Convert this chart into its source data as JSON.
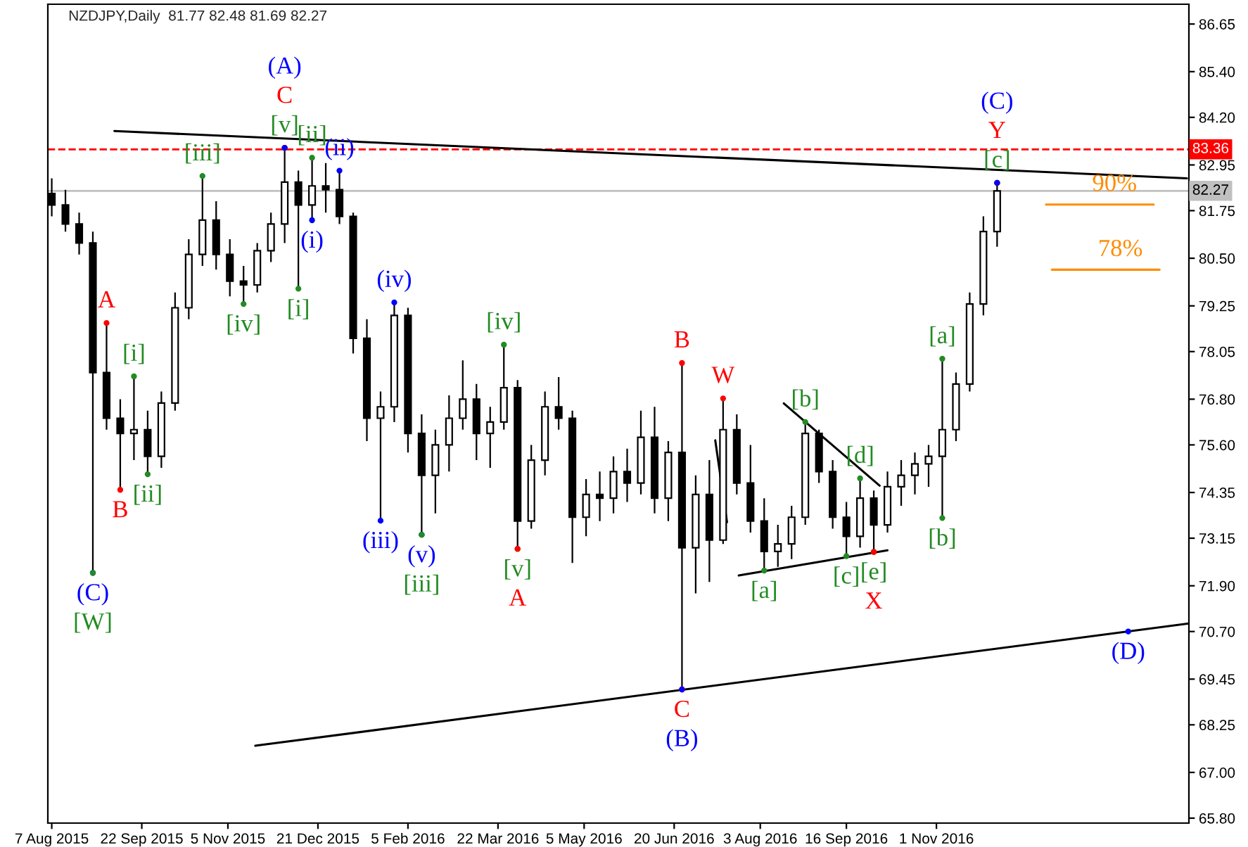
{
  "chart_data": {
    "type": "candlestick",
    "title": "NZDJPY,Daily  81.77 82.48 81.69 82.27",
    "x": [
      "2015-08-07",
      "2015-08-14",
      "2015-08-21",
      "2015-08-28",
      "2015-09-04",
      "2015-09-11",
      "2015-09-18",
      "2015-09-25",
      "2015-10-02",
      "2015-10-09",
      "2015-10-16",
      "2015-10-23",
      "2015-10-30",
      "2015-11-06",
      "2015-11-13",
      "2015-11-20",
      "2015-11-27",
      "2015-12-04",
      "2015-12-11",
      "2015-12-18",
      "2015-12-25",
      "2016-01-01",
      "2016-01-08",
      "2016-01-15",
      "2016-01-22",
      "2016-01-29",
      "2016-02-05",
      "2016-02-12",
      "2016-02-19",
      "2016-02-26",
      "2016-03-04",
      "2016-03-11",
      "2016-03-18",
      "2016-03-25",
      "2016-04-01",
      "2016-04-08",
      "2016-04-15",
      "2016-04-22",
      "2016-04-29",
      "2016-05-06",
      "2016-05-13",
      "2016-05-20",
      "2016-05-27",
      "2016-06-03",
      "2016-06-10",
      "2016-06-17",
      "2016-06-24",
      "2016-07-01",
      "2016-07-08",
      "2016-07-15",
      "2016-07-22",
      "2016-07-29",
      "2016-08-05",
      "2016-08-12",
      "2016-08-19",
      "2016-08-26",
      "2016-09-02",
      "2016-09-09",
      "2016-09-16",
      "2016-09-23",
      "2016-09-30",
      "2016-10-07",
      "2016-10-14",
      "2016-10-21",
      "2016-10-28",
      "2016-11-04",
      "2016-11-11",
      "2016-11-18",
      "2016-11-25",
      "2016-12-02"
    ],
    "ohlc": [
      [
        82.2,
        82.6,
        81.6,
        81.9
      ],
      [
        81.9,
        82.3,
        81.2,
        81.4
      ],
      [
        81.4,
        81.7,
        80.6,
        80.9
      ],
      [
        80.9,
        81.2,
        72.24,
        77.5
      ],
      [
        77.5,
        78.8,
        76.0,
        76.3
      ],
      [
        76.3,
        76.8,
        74.42,
        75.9
      ],
      [
        75.9,
        77.4,
        75.2,
        76.0
      ],
      [
        76.0,
        76.5,
        74.83,
        75.3
      ],
      [
        75.3,
        77.0,
        75.0,
        76.7
      ],
      [
        76.7,
        79.6,
        76.5,
        79.2
      ],
      [
        79.2,
        81.0,
        78.9,
        80.6
      ],
      [
        80.6,
        82.66,
        80.3,
        81.5
      ],
      [
        81.5,
        82.0,
        80.2,
        80.6
      ],
      [
        80.6,
        81.0,
        79.5,
        79.9
      ],
      [
        79.9,
        80.3,
        79.3,
        79.8
      ],
      [
        79.8,
        80.9,
        79.6,
        80.7
      ],
      [
        80.7,
        81.7,
        80.4,
        81.4
      ],
      [
        81.4,
        83.4,
        80.9,
        82.5
      ],
      [
        82.5,
        82.8,
        79.7,
        81.9
      ],
      [
        81.9,
        83.14,
        81.5,
        82.4
      ],
      [
        82.4,
        83.0,
        81.7,
        82.3
      ],
      [
        82.3,
        82.8,
        81.4,
        81.6
      ],
      [
        81.6,
        81.7,
        78.0,
        78.4
      ],
      [
        78.4,
        78.9,
        75.7,
        76.3
      ],
      [
        76.3,
        77.0,
        73.61,
        76.6
      ],
      [
        76.6,
        79.34,
        76.2,
        79.0
      ],
      [
        79.0,
        79.2,
        75.4,
        75.9
      ],
      [
        75.9,
        76.4,
        73.24,
        74.8
      ],
      [
        74.8,
        76.0,
        73.8,
        75.6
      ],
      [
        75.6,
        76.9,
        74.9,
        76.3
      ],
      [
        76.3,
        77.82,
        76.0,
        76.8
      ],
      [
        76.8,
        77.2,
        75.2,
        75.9
      ],
      [
        75.9,
        76.6,
        75.0,
        76.2
      ],
      [
        76.2,
        78.23,
        76.0,
        77.1
      ],
      [
        77.1,
        77.3,
        72.87,
        73.6
      ],
      [
        73.6,
        75.6,
        73.4,
        75.2
      ],
      [
        75.2,
        77.0,
        74.8,
        76.6
      ],
      [
        76.6,
        77.38,
        76.0,
        76.3
      ],
      [
        76.3,
        76.5,
        72.5,
        73.7
      ],
      [
        73.7,
        74.7,
        73.2,
        74.3
      ],
      [
        74.3,
        74.9,
        73.6,
        74.2
      ],
      [
        74.2,
        75.3,
        73.8,
        74.9
      ],
      [
        74.9,
        75.5,
        74.1,
        74.6
      ],
      [
        74.6,
        76.5,
        74.3,
        75.8
      ],
      [
        75.8,
        76.6,
        73.8,
        74.2
      ],
      [
        74.2,
        75.7,
        73.6,
        75.4
      ],
      [
        75.4,
        77.75,
        69.18,
        72.9
      ],
      [
        72.9,
        74.8,
        71.7,
        74.3
      ],
      [
        74.3,
        75.2,
        72.0,
        73.1
      ],
      [
        73.1,
        76.82,
        73.0,
        76.0
      ],
      [
        76.0,
        76.4,
        74.3,
        74.6
      ],
      [
        74.6,
        75.6,
        73.3,
        73.6
      ],
      [
        73.6,
        74.2,
        72.3,
        72.8
      ],
      [
        72.8,
        73.5,
        72.4,
        73.0
      ],
      [
        73.0,
        74.0,
        72.6,
        73.7
      ],
      [
        73.7,
        76.2,
        73.5,
        75.9
      ],
      [
        75.9,
        76.0,
        74.6,
        74.9
      ],
      [
        74.9,
        75.2,
        73.4,
        73.7
      ],
      [
        73.7,
        74.1,
        72.68,
        73.2
      ],
      [
        73.2,
        74.72,
        72.9,
        74.2
      ],
      [
        74.2,
        74.4,
        72.79,
        73.5
      ],
      [
        73.5,
        74.9,
        73.3,
        74.5
      ],
      [
        74.5,
        75.2,
        74.0,
        74.8
      ],
      [
        74.8,
        75.4,
        74.3,
        75.1
      ],
      [
        75.1,
        75.6,
        74.5,
        75.3
      ],
      [
        75.3,
        77.86,
        73.68,
        76.0
      ],
      [
        76.0,
        77.5,
        75.7,
        77.2
      ],
      [
        77.2,
        79.6,
        77.0,
        79.3
      ],
      [
        79.3,
        81.6,
        79.0,
        81.2
      ],
      [
        81.2,
        82.48,
        80.8,
        82.27
      ]
    ],
    "color": "#000000",
    "series": [
      {
        "type": "line",
        "color": "#000000",
        "x": [
          "2015-09-08",
          "2017-03-09"
        ],
        "values": [
          83.84,
          82.6
        ]
      },
      {
        "type": "line",
        "color": "#000000",
        "x": [
          "2015-11-19",
          "2017-03-10"
        ],
        "values": [
          67.7,
          70.91
        ]
      },
      {
        "type": "line",
        "color": "#000000",
        "x": [
          "2016-07-23",
          "2016-10-07"
        ],
        "values": [
          72.17,
          72.83
        ]
      },
      {
        "type": "line",
        "color": "#000000",
        "x": [
          "2016-08-15",
          "2016-10-03"
        ],
        "values": [
          76.69,
          74.53
        ]
      },
      {
        "type": "line",
        "color": "#000000",
        "x": [
          "2016-07-11",
          "2016-07-17"
        ],
        "values": [
          75.72,
          73.57
        ]
      },
      {
        "type": "line",
        "color": "#ff8c00",
        "x": [
          "2016-12-27",
          "2017-02-20"
        ],
        "values": [
          81.91,
          81.91
        ]
      },
      {
        "type": "line",
        "color": "#ff8c00",
        "x": [
          "2016-12-30",
          "2017-02-23"
        ],
        "values": [
          80.2,
          80.2
        ]
      },
      {
        "type": "scatter",
        "marker": "circle",
        "x": [
          "2015-08-28",
          "2015-08-28",
          "2015-09-04",
          "2015-09-11",
          "2015-09-18",
          "2015-09-25",
          "2015-10-23",
          "2015-11-13",
          "2015-12-04",
          "2015-12-04",
          "2015-12-04",
          "2015-12-11",
          "2015-12-18",
          "2015-12-18",
          "2016-01-01",
          "2016-01-22",
          "2016-01-29",
          "2016-02-12",
          "2016-02-12",
          "2016-03-25",
          "2016-04-01",
          "2016-04-01",
          "2016-06-24",
          "2016-06-24",
          "2016-06-24",
          "2016-07-15",
          "2016-08-05",
          "2016-08-26",
          "2016-09-16",
          "2016-09-23",
          "2016-09-30",
          "2016-09-30",
          "2016-11-04",
          "2016-11-04",
          "2016-12-02",
          "2016-12-02",
          "2016-12-02",
          "2017-02-07"
        ],
        "values": [
          72.24,
          72.24,
          78.8,
          74.42,
          77.4,
          74.83,
          82.66,
          79.3,
          83.4,
          83.4,
          83.4,
          79.7,
          83.14,
          81.5,
          82.8,
          73.61,
          79.34,
          73.24,
          73.24,
          78.23,
          72.87,
          72.87,
          77.75,
          69.18,
          69.18,
          76.82,
          72.3,
          76.2,
          72.68,
          74.72,
          72.79,
          72.79,
          77.86,
          73.68,
          82.48,
          82.48,
          82.48,
          70.7
        ],
        "value_labels": [
          "(C)",
          "[W]",
          "A",
          "B",
          "[i]",
          "[ii]",
          "[iii]",
          "[iv]",
          "[v]",
          "C",
          "(A)",
          "[i]",
          "[ii]",
          "(i)",
          "(ii)",
          "(iii)",
          "(iv)",
          "(v)",
          "[iii]",
          "[iv]",
          "[v]",
          "A",
          "B",
          "C",
          "(B)",
          "W",
          "[a]",
          "[b]",
          "[c]",
          "[d]",
          "[e]",
          "X",
          "[a]",
          "[b]",
          "[c]",
          "Y",
          "(C)",
          "(D)"
        ],
        "colors": [
          "#0000ff",
          "#228b22",
          "#ff0000",
          "#ff0000",
          "#228b22",
          "#228b22",
          "#228b22",
          "#228b22",
          "#228b22",
          "#ff0000",
          "#0000ff",
          "#228b22",
          "#228b22",
          "#0000ff",
          "#0000ff",
          "#0000ff",
          "#0000ff",
          "#0000ff",
          "#228b22",
          "#228b22",
          "#228b22",
          "#ff0000",
          "#ff0000",
          "#ff0000",
          "#0000ff",
          "#ff0000",
          "#228b22",
          "#228b22",
          "#228b22",
          "#228b22",
          "#228b22",
          "#ff0000",
          "#228b22",
          "#228b22",
          "#228b22",
          "#ff0000",
          "#0000ff",
          "#0000ff"
        ]
      }
    ],
    "annotations": [
      {
        "text": "90%",
        "x": "2017-01-31",
        "y": 81.91
      },
      {
        "text": "78%",
        "x": "2017-02-03",
        "y": 80.2
      }
    ],
    "ref_lines": [
      {
        "axis": "y",
        "value": 83.36,
        "label": "83.36",
        "color": "#ff0000",
        "line_style": "dashed"
      },
      {
        "axis": "y",
        "value": 82.27,
        "label": "82.27",
        "color": "#c0c0c0",
        "line_style": "solid"
      }
    ],
    "xlim": [
      "2015-08-05",
      "2017-03-10"
    ],
    "xticks": [
      {
        "value": "2015-08-07",
        "label": "7 Aug 2015"
      },
      {
        "value": "2015-09-22",
        "label": "22 Sep 2015"
      },
      {
        "value": "2015-11-05",
        "label": "5 Nov 2015"
      },
      {
        "value": "2015-12-21",
        "label": "21 Dec 2015"
      },
      {
        "value": "2016-02-05",
        "label": "5 Feb 2016"
      },
      {
        "value": "2016-03-22",
        "label": "22 Mar 2016"
      },
      {
        "value": "2016-05-05",
        "label": "5 May 2016"
      },
      {
        "value": "2016-06-20",
        "label": "20 Jun 2016"
      },
      {
        "value": "2016-08-03",
        "label": "3 Aug 2016"
      },
      {
        "value": "2016-09-16",
        "label": "16 Sep 2016"
      },
      {
        "value": "2016-11-01",
        "label": "1 Nov 2016"
      }
    ],
    "ylim": [
      65.67,
      87.17
    ],
    "yticks": [
      {
        "value": 86.65,
        "label": "86.65"
      },
      {
        "value": 85.4,
        "label": "85.40"
      },
      {
        "value": 84.2,
        "label": "84.20"
      },
      {
        "value": 82.95,
        "label": "82.95"
      },
      {
        "value": 81.75,
        "label": "81.75"
      },
      {
        "value": 80.5,
        "label": "80.50"
      },
      {
        "value": 79.25,
        "label": "79.25"
      },
      {
        "value": 78.05,
        "label": "78.05"
      },
      {
        "value": 76.8,
        "label": "76.80"
      },
      {
        "value": 75.6,
        "label": "75.60"
      },
      {
        "value": 74.35,
        "label": "74.35"
      },
      {
        "value": 73.15,
        "label": "73.15"
      },
      {
        "value": 71.9,
        "label": "71.90"
      },
      {
        "value": 70.7,
        "label": "70.70"
      },
      {
        "value": 69.45,
        "label": "69.45"
      },
      {
        "value": 68.25,
        "label": "68.25"
      },
      {
        "value": 67.0,
        "label": "67.00"
      },
      {
        "value": 65.8,
        "label": "65.80"
      }
    ]
  }
}
